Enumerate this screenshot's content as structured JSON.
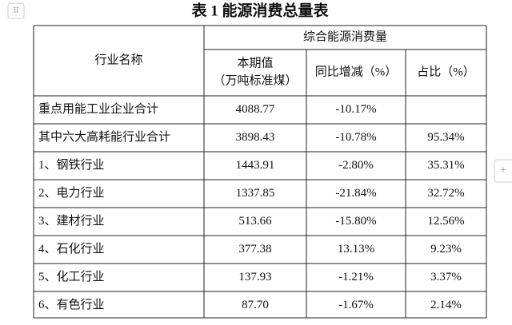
{
  "header": {
    "title": "表 1  能源消费总量表"
  },
  "table": {
    "row_label_header": "行业名称",
    "group_header": "综合能源消费量",
    "columns": [
      [
        "本期值",
        "（万吨标准煤）"
      ],
      [
        "同比增减（%）"
      ],
      [
        "占比（%）"
      ]
    ],
    "rows": [
      [
        "重点用能工业企业合计",
        "4088.77",
        "-10.17%",
        null
      ],
      [
        "其中六大高耗能行业合计",
        "3898.43",
        "-10.78%",
        "95.34%"
      ],
      [
        "1、钢铁行业",
        "1443.91",
        "-2.80%",
        "35.31%"
      ],
      [
        "2、电力行业",
        "1337.85",
        "-21.84%",
        "32.72%"
      ],
      [
        "3、建材行业",
        "513.66",
        "-15.80%",
        "12.56%"
      ],
      [
        "4、石化行业",
        "377.38",
        "13.13%",
        "9.23%"
      ],
      [
        "5、化工行业",
        "137.93",
        "-1.21%",
        "3.37%"
      ],
      [
        "6、有色行业",
        "87.70",
        "-1.67%",
        "2.14%"
      ]
    ]
  }
}
